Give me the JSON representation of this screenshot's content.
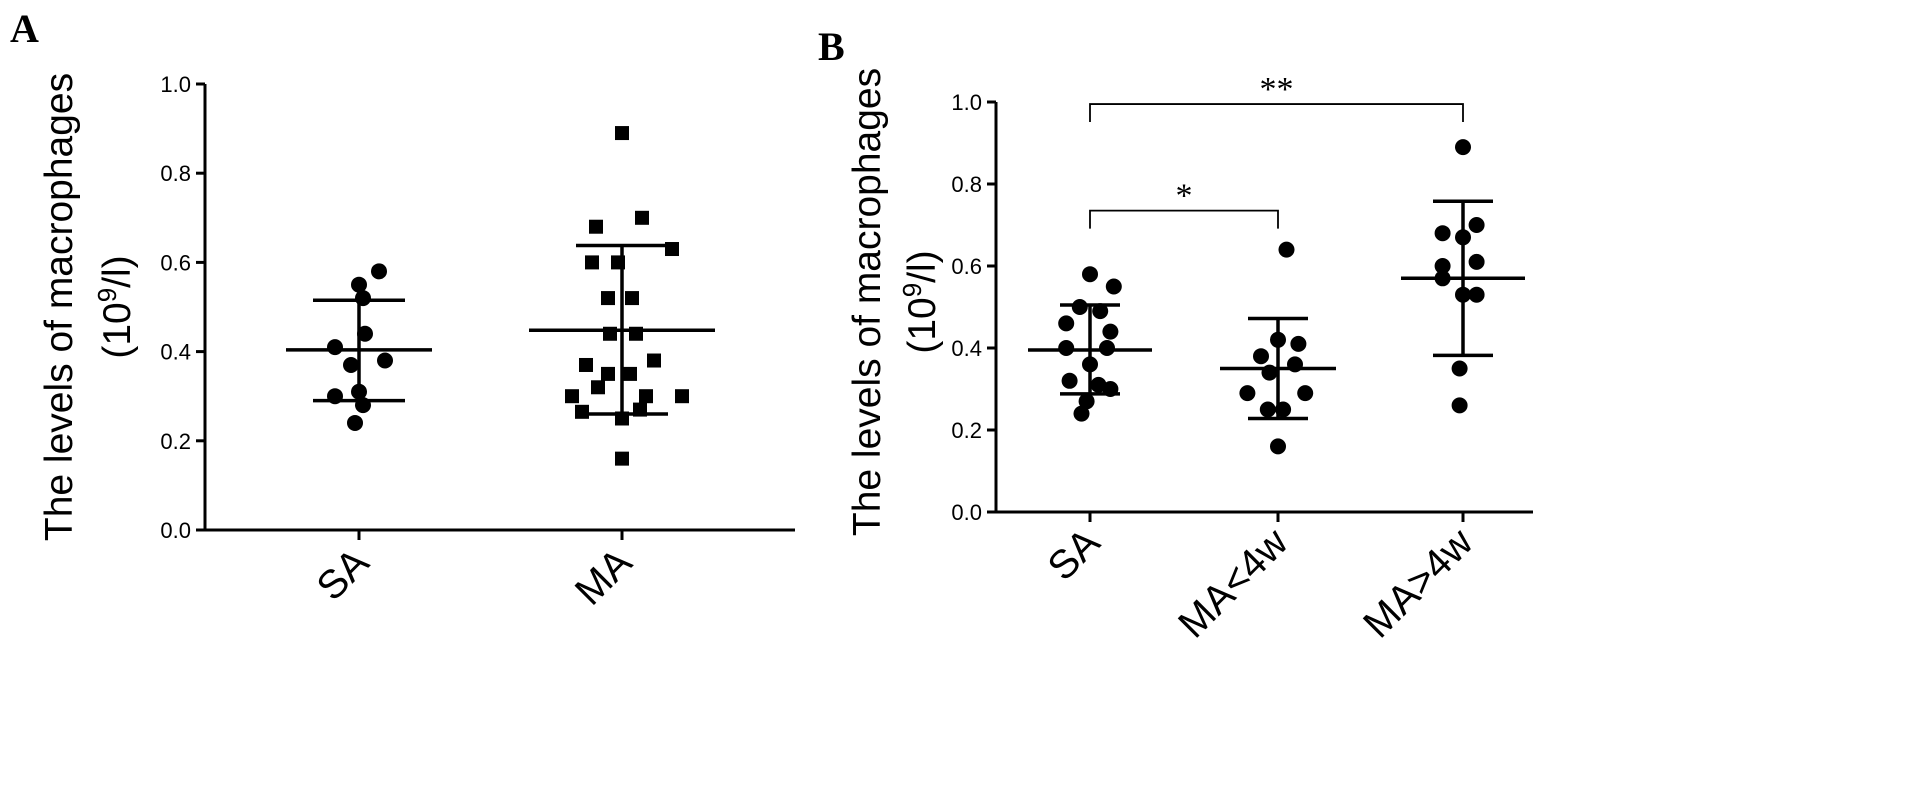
{
  "panels": [
    {
      "letter": "A"
    },
    {
      "letter": "B"
    }
  ],
  "chart_data": [
    {
      "type": "scatter",
      "panel": "A",
      "ylabel_line1": "The levels of macrophages",
      "ylabel_line2_prefix": "(10",
      "ylabel_line2_sup": "9",
      "ylabel_line2_suffix": "/l)",
      "ylim": [
        0,
        1.0
      ],
      "yticks": [
        0.0,
        0.2,
        0.4,
        0.6,
        0.8,
        1.0
      ],
      "ytick_labels": [
        "0.0",
        "0.2",
        "0.4",
        "0.6",
        "0.8",
        "1.0"
      ],
      "grid": false,
      "categories": [
        "SA",
        "MA"
      ],
      "series": [
        {
          "category": "SA",
          "marker": "circle",
          "points": [
            {
              "dx": -0.12,
              "y": 0.41
            },
            {
              "dx": 0.03,
              "y": 0.44
            },
            {
              "dx": 0.13,
              "y": 0.38
            },
            {
              "dx": -0.04,
              "y": 0.37
            },
            {
              "dx": 0.0,
              "y": 0.55
            },
            {
              "dx": 0.1,
              "y": 0.58
            },
            {
              "dx": -0.12,
              "y": 0.3
            },
            {
              "dx": 0.02,
              "y": 0.28
            },
            {
              "dx": -0.02,
              "y": 0.24
            },
            {
              "dx": 0.02,
              "y": 0.52
            },
            {
              "dx": 0.0,
              "y": 0.31
            }
          ],
          "mean": 0.404,
          "sd_low": 0.29,
          "sd_high": 0.515
        },
        {
          "category": "MA",
          "marker": "square",
          "points": [
            {
              "dx": 0.0,
              "y": 0.89
            },
            {
              "dx": -0.13,
              "y": 0.68
            },
            {
              "dx": 0.1,
              "y": 0.7
            },
            {
              "dx": -0.15,
              "y": 0.6
            },
            {
              "dx": -0.02,
              "y": 0.6
            },
            {
              "dx": 0.25,
              "y": 0.63
            },
            {
              "dx": -0.07,
              "y": 0.52
            },
            {
              "dx": 0.05,
              "y": 0.52
            },
            {
              "dx": -0.06,
              "y": 0.44
            },
            {
              "dx": 0.07,
              "y": 0.44
            },
            {
              "dx": -0.18,
              "y": 0.37
            },
            {
              "dx": 0.16,
              "y": 0.38
            },
            {
              "dx": -0.07,
              "y": 0.35
            },
            {
              "dx": 0.04,
              "y": 0.35
            },
            {
              "dx": -0.12,
              "y": 0.32
            },
            {
              "dx": 0.12,
              "y": 0.3
            },
            {
              "dx": -0.25,
              "y": 0.3
            },
            {
              "dx": 0.3,
              "y": 0.3
            },
            {
              "dx": -0.2,
              "y": 0.265
            },
            {
              "dx": 0.09,
              "y": 0.27
            },
            {
              "dx": 0.0,
              "y": 0.25
            },
            {
              "dx": 0.0,
              "y": 0.16
            }
          ],
          "mean": 0.448,
          "sd_low": 0.26,
          "sd_high": 0.638
        }
      ]
    },
    {
      "type": "scatter",
      "panel": "B",
      "ylabel_line1": "The levels of macrophages",
      "ylabel_line2_prefix": "(10",
      "ylabel_line2_sup": "9",
      "ylabel_line2_suffix": "/l)",
      "ylim": [
        0,
        1.0
      ],
      "yticks": [
        0.0,
        0.2,
        0.4,
        0.6,
        0.8,
        1.0
      ],
      "ytick_labels": [
        "0.0",
        "0.2",
        "0.4",
        "0.6",
        "0.8",
        "1.0"
      ],
      "grid": false,
      "categories": [
        "SA",
        "MA<4w",
        "MA>4w"
      ],
      "series": [
        {
          "category": "SA",
          "marker": "circle",
          "points": [
            {
              "dx": 0.0,
              "y": 0.58
            },
            {
              "dx": 0.14,
              "y": 0.55
            },
            {
              "dx": -0.06,
              "y": 0.5
            },
            {
              "dx": 0.06,
              "y": 0.49
            },
            {
              "dx": -0.14,
              "y": 0.46
            },
            {
              "dx": 0.12,
              "y": 0.44
            },
            {
              "dx": -0.14,
              "y": 0.4
            },
            {
              "dx": 0.1,
              "y": 0.4
            },
            {
              "dx": 0.0,
              "y": 0.36
            },
            {
              "dx": -0.12,
              "y": 0.32
            },
            {
              "dx": 0.05,
              "y": 0.31
            },
            {
              "dx": -0.02,
              "y": 0.27
            },
            {
              "dx": 0.12,
              "y": 0.3
            },
            {
              "dx": -0.05,
              "y": 0.24
            }
          ],
          "mean": 0.395,
          "sd_low": 0.288,
          "sd_high": 0.505
        },
        {
          "category": "MA<4w",
          "marker": "circle",
          "points": [
            {
              "dx": 0.05,
              "y": 0.64
            },
            {
              "dx": 0.0,
              "y": 0.42
            },
            {
              "dx": 0.12,
              "y": 0.41
            },
            {
              "dx": -0.1,
              "y": 0.38
            },
            {
              "dx": 0.1,
              "y": 0.36
            },
            {
              "dx": -0.05,
              "y": 0.34
            },
            {
              "dx": -0.18,
              "y": 0.29
            },
            {
              "dx": 0.16,
              "y": 0.29
            },
            {
              "dx": 0.03,
              "y": 0.25
            },
            {
              "dx": -0.06,
              "y": 0.25
            },
            {
              "dx": 0.0,
              "y": 0.16
            }
          ],
          "mean": 0.35,
          "sd_low": 0.228,
          "sd_high": 0.472
        },
        {
          "category": "MA>4w",
          "marker": "circle",
          "points": [
            {
              "dx": 0.0,
              "y": 0.89
            },
            {
              "dx": -0.12,
              "y": 0.68
            },
            {
              "dx": 0.08,
              "y": 0.7
            },
            {
              "dx": 0.0,
              "y": 0.67
            },
            {
              "dx": -0.12,
              "y": 0.6
            },
            {
              "dx": 0.08,
              "y": 0.61
            },
            {
              "dx": -0.12,
              "y": 0.57
            },
            {
              "dx": 0.0,
              "y": 0.53
            },
            {
              "dx": 0.08,
              "y": 0.53
            },
            {
              "dx": -0.02,
              "y": 0.35
            },
            {
              "dx": -0.02,
              "y": 0.26
            }
          ],
          "mean": 0.57,
          "sd_low": 0.382,
          "sd_high": 0.758
        }
      ],
      "annotations": [
        {
          "from": "SA",
          "to": "MA>4w",
          "label": "**",
          "y": 0.995
        },
        {
          "from": "SA",
          "to": "MA<4w",
          "label": "*",
          "y": 0.735
        }
      ]
    }
  ]
}
